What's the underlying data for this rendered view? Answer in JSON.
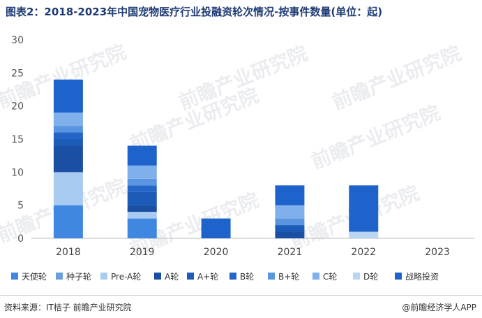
{
  "header": {
    "title": "图表2：2018-2023年中国宠物医疗行业投融资轮次情况-按事件数量(单位：起)"
  },
  "footer": {
    "source": "资料来源：IT桔子 前瞻产业研究院",
    "brand": "@前瞻经济学人APP"
  },
  "watermark": {
    "text": "前瞻产业研究院"
  },
  "chart_data": {
    "type": "bar",
    "stacked": true,
    "title": "图表2：2018-2023年中国宠物医疗行业投融资轮次情况-按事件数量(单位：起)",
    "xlabel": "",
    "ylabel": "",
    "categories": [
      "2018",
      "2019",
      "2020",
      "2021",
      "2022",
      "2023"
    ],
    "ylim": [
      0,
      30
    ],
    "yticks": [
      0,
      5,
      10,
      15,
      20,
      25,
      30
    ],
    "grid": false,
    "legend_position": "bottom",
    "series": [
      {
        "name": "天使轮",
        "color": "#3f87e0",
        "values": [
          5,
          3,
          0,
          0,
          0,
          0
        ]
      },
      {
        "name": "种子轮",
        "color": "#6a9fdd",
        "values": [
          0,
          0,
          0,
          0,
          0,
          0
        ]
      },
      {
        "name": "Pre-A轮",
        "color": "#a9cbf1",
        "values": [
          5,
          1,
          0,
          0,
          0,
          0
        ]
      },
      {
        "name": "A轮",
        "color": "#1a4fa3",
        "values": [
          4,
          1,
          0,
          1,
          0,
          0
        ]
      },
      {
        "name": "A+轮",
        "color": "#1c5bb8",
        "values": [
          1,
          2,
          0,
          1,
          0,
          0
        ]
      },
      {
        "name": "B轮",
        "color": "#2565c8",
        "values": [
          1,
          1,
          0,
          0,
          0,
          0
        ]
      },
      {
        "name": "B+轮",
        "color": "#5a95e2",
        "values": [
          1,
          1,
          0,
          1,
          0,
          0
        ]
      },
      {
        "name": "C轮",
        "color": "#7fb0ec",
        "values": [
          2,
          2,
          0,
          2,
          0,
          0
        ]
      },
      {
        "name": "D轮",
        "color": "#b9d5f3",
        "values": [
          0,
          0,
          0,
          0,
          1,
          0
        ]
      },
      {
        "name": "战略投资",
        "color": "#1e63cc",
        "values": [
          5,
          3,
          3,
          3,
          7,
          0
        ]
      }
    ]
  }
}
